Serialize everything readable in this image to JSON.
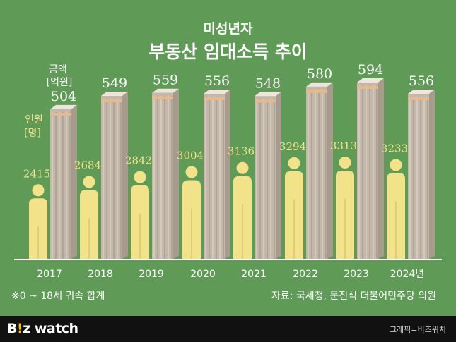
{
  "header": {
    "title_line1": "미성년자",
    "title_line2": "부동산 임대소득 추이"
  },
  "chart_data": {
    "type": "bar",
    "categories": [
      "2017",
      "2018",
      "2019",
      "2020",
      "2021",
      "2022",
      "2023",
      "2024년"
    ],
    "series": [
      {
        "name": "인원 [명]",
        "values": [
          2415,
          2684,
          2842,
          3004,
          3136,
          3294,
          3313,
          3233
        ]
      },
      {
        "name": "금액 [억원]",
        "values": [
          504,
          549,
          559,
          556,
          548,
          580,
          594,
          556
        ]
      }
    ],
    "person_label": [
      "인원",
      "[명]"
    ],
    "amount_label": [
      "금액",
      "[억원]"
    ],
    "colors": {
      "persons": "#f2e28a",
      "amount": "#c3b8aa",
      "money_band": "#e9b98b"
    }
  },
  "note": "※0 ~ 18세 귀속 합계",
  "source": "자료: 국세청, 문진석 더불어민주당 의원",
  "footer": {
    "logo_a": "B",
    "logo_b": "!",
    "logo_c": "z watch",
    "credit": "그래픽=비즈워치"
  }
}
